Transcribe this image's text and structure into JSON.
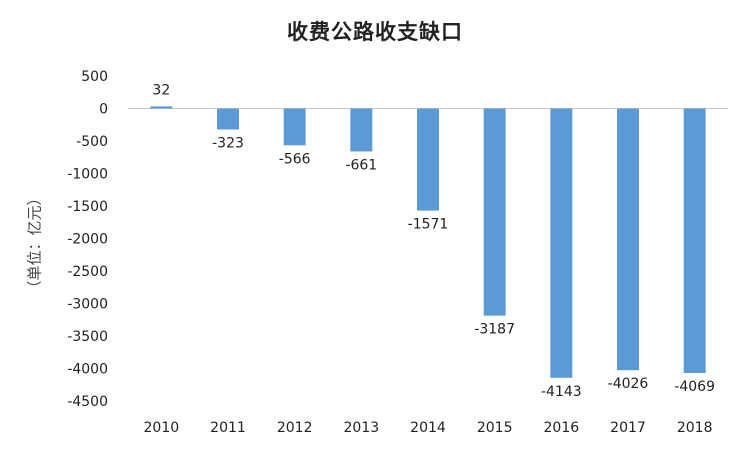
{
  "chart_data": {
    "type": "bar",
    "title": "收费公路收支缺口",
    "ylabel": "（单位：亿元）",
    "xlabel": "",
    "categories": [
      "2010",
      "2011",
      "2012",
      "2013",
      "2014",
      "2015",
      "2016",
      "2017",
      "2018"
    ],
    "values": [
      32,
      -323,
      -566,
      -661,
      -1571,
      -3187,
      -4143,
      -4026,
      -4069
    ],
    "data_labels": [
      "32",
      "-323",
      "-566",
      "-661",
      "-1571",
      "-3187",
      "-4143",
      "-4026",
      "-4069"
    ],
    "ylim": [
      -4500,
      500
    ],
    "yticks": [
      500,
      0,
      -500,
      -1000,
      -1500,
      -2000,
      -2500,
      -3000,
      -3500,
      -4000,
      -4500
    ],
    "ytick_labels": [
      "500",
      "0",
      "-500",
      "-1000",
      "-1500",
      "-2000",
      "-2500",
      "-3000",
      "-3500",
      "-4000",
      "-4500"
    ],
    "bar_color": "#5B9BD5",
    "grid": false,
    "legend": "none"
  }
}
